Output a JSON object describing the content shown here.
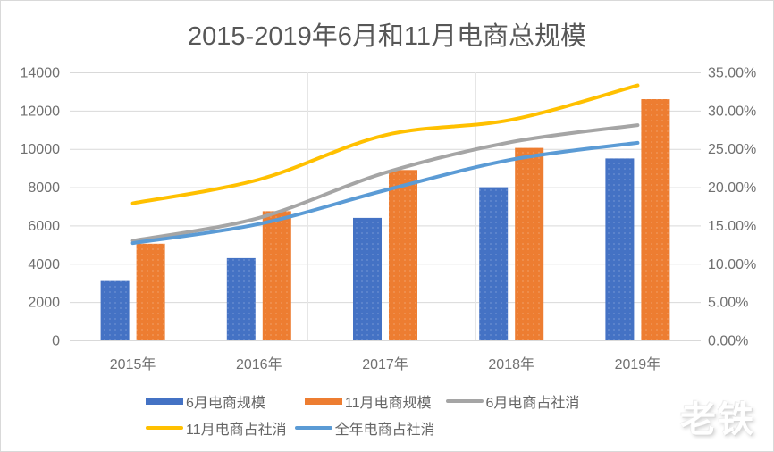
{
  "watermark": "老铁",
  "chart_data": {
    "type": "combo-bar-line",
    "title": "2015-2019年6月和11月电商总规模",
    "categories": [
      "2015年",
      "2016年",
      "2017年",
      "2018年",
      "2019年"
    ],
    "bar_series": [
      {
        "name": "6月电商规模",
        "color": "#4472C4",
        "axis": "left",
        "values": [
          3100,
          4300,
          6400,
          8000,
          9500
        ]
      },
      {
        "name": "11月电商规模",
        "color": "#ED7D31",
        "axis": "left",
        "values": [
          5050,
          6750,
          8900,
          10050,
          12600
        ]
      }
    ],
    "line_series": [
      {
        "name": "6月电商占社消",
        "color": "#A5A5A5",
        "axis": "right",
        "values": [
          13.0,
          16.0,
          21.9,
          25.9,
          28.1
        ]
      },
      {
        "name": "11月电商占社消",
        "color": "#FFC000",
        "axis": "right",
        "values": [
          17.9,
          21.0,
          26.8,
          28.8,
          33.3
        ]
      },
      {
        "name": "全年电商占社消",
        "color": "#5B9BD5",
        "axis": "right",
        "values": [
          12.7,
          15.2,
          19.6,
          23.6,
          25.8
        ]
      }
    ],
    "left_axis": {
      "min": 0,
      "max": 14000,
      "step": 2000,
      "tick_labels": [
        "0",
        "2000",
        "4000",
        "6000",
        "8000",
        "10000",
        "12000",
        "14000"
      ]
    },
    "right_axis": {
      "min": 0,
      "max": 35,
      "step": 5,
      "tick_labels": [
        "0.00%",
        "5.00%",
        "10.00%",
        "15.00%",
        "20.00%",
        "25.00%",
        "30.00%",
        "35.00%"
      ]
    },
    "grid": true,
    "grid_color": "#D9D9D9",
    "axis_text_color": "#707070",
    "legend_position": "bottom"
  }
}
